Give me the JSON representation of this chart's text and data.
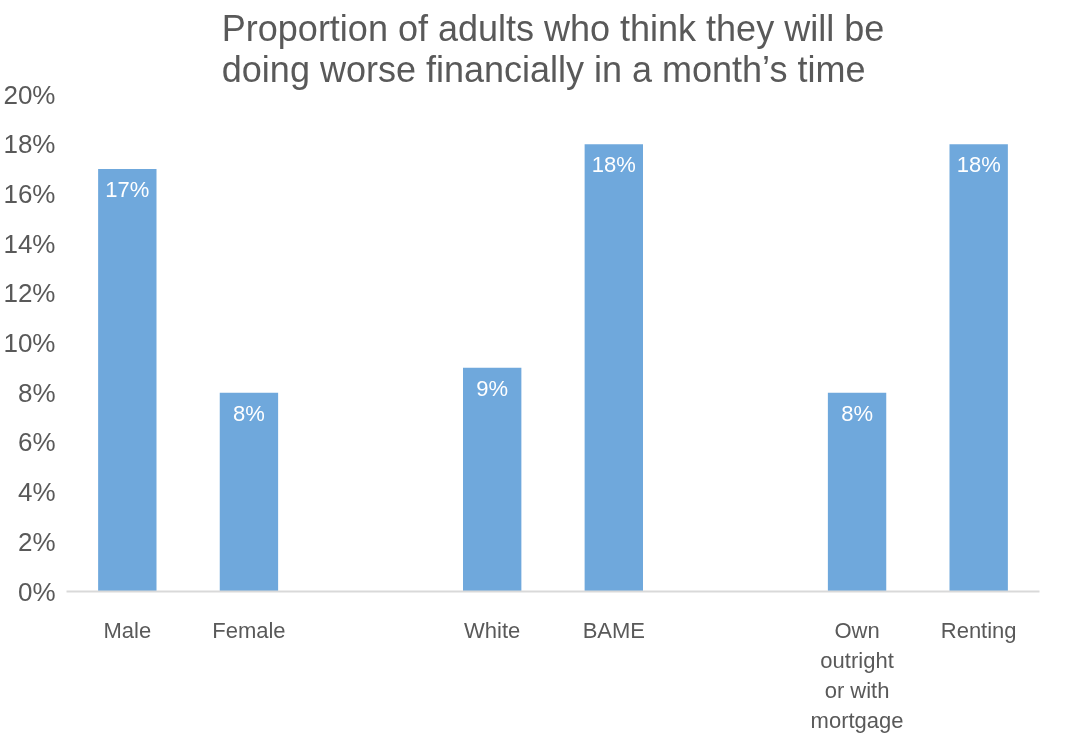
{
  "chart_data": {
    "type": "bar",
    "title": "Proportion of adults who think they will be doing worse financially in a month’s time",
    "categories": [
      "Male",
      "Female",
      null,
      "White",
      "BAME",
      null,
      "Own outright or with mortgage",
      "Renting"
    ],
    "values": [
      17,
      8,
      null,
      9,
      18,
      null,
      8,
      18
    ],
    "value_labels": [
      "17%",
      "8%",
      null,
      "9%",
      "18%",
      null,
      "8%",
      "18%"
    ],
    "color": "#6fa8dc",
    "ylim": [
      0,
      20
    ],
    "yticks": [
      {
        "value": 0,
        "label": "0%"
      },
      {
        "value": 2,
        "label": "2%"
      },
      {
        "value": 4,
        "label": "4%"
      },
      {
        "value": 6,
        "label": "6%"
      },
      {
        "value": 8,
        "label": "8%"
      },
      {
        "value": 10,
        "label": "10%"
      },
      {
        "value": 12,
        "label": "12%"
      },
      {
        "value": 14,
        "label": "14%"
      },
      {
        "value": 16,
        "label": "16%"
      },
      {
        "value": 18,
        "label": "18%"
      },
      {
        "value": 20,
        "label": "20%"
      }
    ],
    "grid": false
  }
}
